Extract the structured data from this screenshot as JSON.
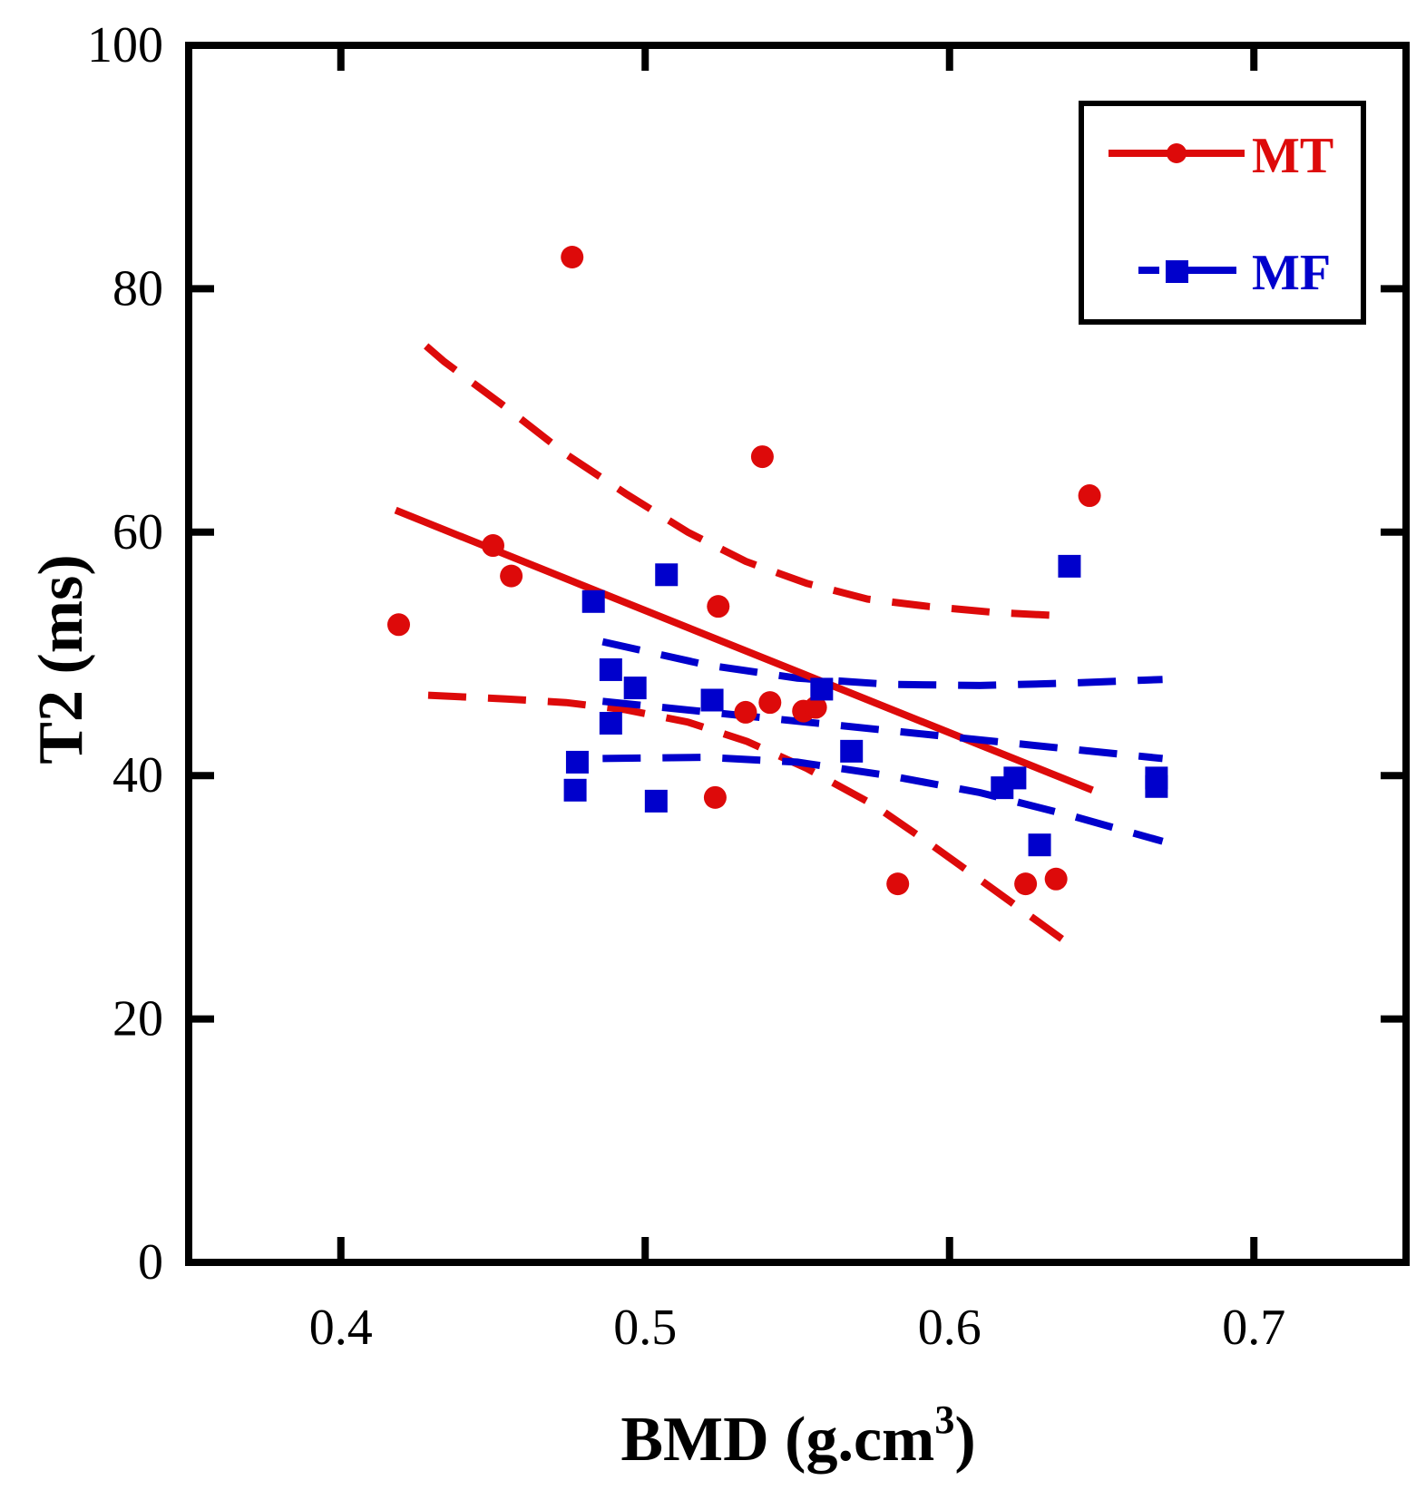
{
  "chart_data": {
    "type": "scatter",
    "title": "",
    "xlabel": "BMD (g.cm",
    "xlabel_superscript": "3",
    "xlabel_suffix": ")",
    "ylabel": "T2 (ms)",
    "xlim": [
      0.35,
      0.75
    ],
    "ylim": [
      0,
      100
    ],
    "xticks": [
      0.4,
      0.5,
      0.6,
      0.7
    ],
    "xtick_labels": [
      "0.4",
      "0.5",
      "0.6",
      "0.7"
    ],
    "yticks": [
      0,
      20,
      40,
      60,
      80,
      100
    ],
    "ytick_labels": [
      "0",
      "20",
      "40",
      "60",
      "80",
      "100"
    ],
    "grid": false,
    "legend_position": "top-right",
    "series": [
      {
        "name": "MT",
        "color": "#dd0a0a",
        "marker": "circle",
        "line_style": "solid",
        "points": [
          {
            "x": 0.419,
            "y": 52.4
          },
          {
            "x": 0.45,
            "y": 58.9
          },
          {
            "x": 0.456,
            "y": 56.4
          },
          {
            "x": 0.476,
            "y": 82.6
          },
          {
            "x": 0.523,
            "y": 38.2
          },
          {
            "x": 0.524,
            "y": 53.9
          },
          {
            "x": 0.533,
            "y": 45.2
          },
          {
            "x": 0.5385,
            "y": 66.2
          },
          {
            "x": 0.541,
            "y": 46.0
          },
          {
            "x": 0.552,
            "y": 45.3
          },
          {
            "x": 0.556,
            "y": 45.6
          },
          {
            "x": 0.583,
            "y": 31.1
          },
          {
            "x": 0.625,
            "y": 31.1
          },
          {
            "x": 0.635,
            "y": 31.5
          },
          {
            "x": 0.646,
            "y": 63.0
          }
        ],
        "fit": {
          "x": [
            0.418,
            0.647
          ],
          "y": [
            61.8,
            38.8
          ]
        },
        "upper_ci": {
          "x": [
            0.428,
            0.434,
            0.454,
            0.474,
            0.494,
            0.514,
            0.533,
            0.553,
            0.573,
            0.593,
            0.615,
            0.639
          ],
          "y": [
            75.3,
            74.0,
            70.3,
            66.4,
            63.1,
            60.0,
            57.6,
            55.8,
            54.5,
            53.9,
            53.4,
            53.1
          ]
        },
        "lower_ci": {
          "x": [
            0.4287,
            0.4543,
            0.474,
            0.4937,
            0.514,
            0.5335,
            0.553,
            0.575,
            0.593,
            0.613,
            0.639
          ],
          "y": [
            46.6,
            46.3,
            46.0,
            45.4,
            44.4,
            42.8,
            40.6,
            37.6,
            34.5,
            30.9,
            26.2
          ]
        }
      },
      {
        "name": "MF",
        "color": "#0000cc",
        "marker": "square",
        "line_style": "dash",
        "points": [
          {
            "x": 0.477,
            "y": 38.8
          },
          {
            "x": 0.4777,
            "y": 41.1
          },
          {
            "x": 0.483,
            "y": 54.3
          },
          {
            "x": 0.4887,
            "y": 48.7
          },
          {
            "x": 0.4887,
            "y": 44.3
          },
          {
            "x": 0.4967,
            "y": 47.2
          },
          {
            "x": 0.5036,
            "y": 37.9
          },
          {
            "x": 0.507,
            "y": 56.5
          },
          {
            "x": 0.522,
            "y": 46.2
          },
          {
            "x": 0.558,
            "y": 47.1
          },
          {
            "x": 0.5678,
            "y": 42.0
          },
          {
            "x": 0.6173,
            "y": 39.0
          },
          {
            "x": 0.6215,
            "y": 39.8
          },
          {
            "x": 0.6296,
            "y": 34.3
          },
          {
            "x": 0.6394,
            "y": 57.2
          },
          {
            "x": 0.668,
            "y": 39.8
          },
          {
            "x": 0.668,
            "y": 39.1
          }
        ],
        "fit": {
          "x": [
            0.486,
            0.67
          ],
          "y": [
            46.1,
            41.4
          ]
        },
        "upper_ci": {
          "x": [
            0.486,
            0.52,
            0.55,
            0.58,
            0.61,
            0.64,
            0.67
          ],
          "y": [
            51.0,
            49.1,
            48.0,
            47.5,
            47.4,
            47.6,
            47.9
          ]
        },
        "lower_ci": {
          "x": [
            0.486,
            0.52,
            0.55,
            0.58,
            0.61,
            0.64,
            0.67
          ],
          "y": [
            41.4,
            41.5,
            41.1,
            40.0,
            38.6,
            36.7,
            34.6
          ]
        }
      }
    ]
  },
  "legend": {
    "items": [
      {
        "label": "MT",
        "color": "#dd0a0a"
      },
      {
        "label": "MF",
        "color": "#0000cc"
      }
    ]
  }
}
